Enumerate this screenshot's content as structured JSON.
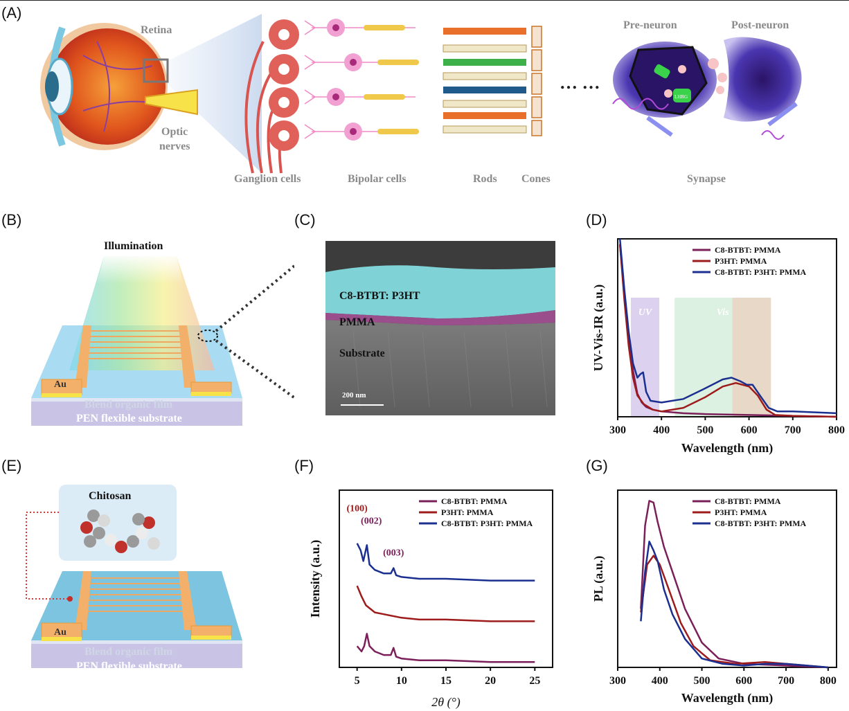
{
  "panels": [
    "(A)",
    "(B)",
    "(C)",
    "(D)",
    "(E)",
    "(F)",
    "(G)"
  ],
  "panel_a": {
    "retina": "Retina",
    "optic_line1": "Optic",
    "optic_line2": "nerves",
    "ganglion": "Ganglion cells",
    "bipolar": "Bipolar cells",
    "rods": "Rods",
    "cones": "Cones",
    "ellipsis": "… …",
    "pre_neuron": "Pre-neuron",
    "post_neuron": "Post-neuron",
    "synapse": "Synapse",
    "vesicle_text": "LHRG"
  },
  "panel_b": {
    "illumination": "Illumination",
    "electrode": "Au",
    "film": "Blend organic film",
    "substrate": "PEN flexible substrate"
  },
  "panel_c": {
    "layer_blend": "C8-BTBT: P3HT",
    "layer_pmma": "PMMA",
    "layer_substrate": "Substrate",
    "scalebar": "200 nm"
  },
  "panel_e": {
    "molecule": "Chitosan",
    "electrode": "Au",
    "film": "Blend organic film",
    "substrate": "PEN flexible substrate"
  },
  "colors": {
    "s1": "#7a1f5a",
    "s2": "#9e1b1b",
    "s3": "#1a2f8f",
    "gold": "#f2b06a",
    "film_blue": "#9fd4ef",
    "synapse_purple": "#5b3bb5"
  },
  "chart_data": [
    {
      "id": "D",
      "type": "line",
      "xlabel": "Wavelength (nm)",
      "ylabel": "UV-Vis-IR (a.u.)",
      "xlim": [
        300,
        800
      ],
      "ylim": [
        0,
        1
      ],
      "xticks": [
        300,
        400,
        500,
        600,
        700,
        800
      ],
      "regions": [
        {
          "label": "UV",
          "x0": 330,
          "x1": 395
        },
        {
          "label": "Vis",
          "x0": 430,
          "x1": 650
        }
      ],
      "series": [
        {
          "name": "C8-BTBT: PMMA",
          "x": [
            305,
            315,
            325,
            335,
            345,
            355,
            365,
            380,
            400,
            450,
            500,
            600,
            700,
            800
          ],
          "y": [
            0.97,
            0.7,
            0.45,
            0.26,
            0.13,
            0.08,
            0.055,
            0.04,
            0.03,
            0.02,
            0.015,
            0.01,
            0.005,
            0.0
          ]
        },
        {
          "name": "P3HT: PMMA",
          "x": [
            305,
            315,
            325,
            335,
            345,
            360,
            380,
            400,
            450,
            500,
            540,
            570,
            600,
            620,
            640,
            660,
            700,
            800
          ],
          "y": [
            0.97,
            0.66,
            0.4,
            0.22,
            0.12,
            0.07,
            0.04,
            0.03,
            0.05,
            0.11,
            0.17,
            0.19,
            0.17,
            0.12,
            0.04,
            0.01,
            0.005,
            0.0
          ]
        },
        {
          "name": "C8-BTBT: P3HT: PMMA",
          "x": [
            305,
            315,
            325,
            335,
            345,
            352,
            358,
            365,
            375,
            400,
            450,
            500,
            540,
            560,
            580,
            595,
            608,
            625,
            645,
            665,
            700,
            800
          ],
          "y": [
            1.0,
            0.72,
            0.48,
            0.3,
            0.22,
            0.24,
            0.25,
            0.14,
            0.09,
            0.08,
            0.1,
            0.16,
            0.21,
            0.22,
            0.2,
            0.18,
            0.18,
            0.12,
            0.05,
            0.03,
            0.03,
            0.02
          ]
        }
      ]
    },
    {
      "id": "F",
      "type": "line",
      "xlabel": "2θ (°)",
      "ylabel": "Intensity (a.u.)",
      "xlim": [
        3,
        27
      ],
      "ylim": [
        0,
        1
      ],
      "xticks": [
        5,
        10,
        15,
        20,
        25
      ],
      "peak_labels": [
        {
          "label": "(100)",
          "x": 5.0,
          "y": 0.88
        },
        {
          "label": "(002)",
          "x": 6.6,
          "y": 0.81
        },
        {
          "label": "(003)",
          "x": 9.1,
          "y": 0.63
        }
      ],
      "series": [
        {
          "name": "C8-BTBT: PMMA",
          "x": [
            5,
            5.5,
            5.8,
            6.1,
            6.4,
            7,
            8,
            8.8,
            9.1,
            9.4,
            10,
            12,
            15,
            20,
            25
          ],
          "y": [
            0.12,
            0.09,
            0.12,
            0.19,
            0.12,
            0.09,
            0.07,
            0.07,
            0.11,
            0.06,
            0.05,
            0.04,
            0.04,
            0.03,
            0.03
          ]
        },
        {
          "name": "P3HT: PMMA",
          "x": [
            5,
            5.5,
            6,
            7,
            8,
            10,
            12,
            15,
            20,
            25
          ],
          "y": [
            0.46,
            0.4,
            0.35,
            0.31,
            0.3,
            0.28,
            0.27,
            0.27,
            0.26,
            0.26
          ]
        },
        {
          "name": "C8-BTBT: P3HT: PMMA",
          "x": [
            5,
            5.4,
            5.7,
            6.1,
            6.4,
            7,
            8,
            8.8,
            9.1,
            9.4,
            10,
            12,
            15,
            20,
            25
          ],
          "y": [
            0.7,
            0.66,
            0.6,
            0.69,
            0.58,
            0.55,
            0.53,
            0.53,
            0.56,
            0.52,
            0.51,
            0.5,
            0.5,
            0.49,
            0.49
          ]
        }
      ]
    },
    {
      "id": "G",
      "type": "line",
      "xlabel": "Wavelength (nm)",
      "ylabel": "PL (a.u.)",
      "xlim": [
        300,
        820
      ],
      "ylim": [
        0,
        1
      ],
      "xticks": [
        300,
        400,
        500,
        600,
        700,
        800
      ],
      "series": [
        {
          "name": "C8-BTBT: PMMA",
          "x": [
            355,
            365,
            375,
            385,
            395,
            410,
            430,
            460,
            500,
            540,
            600,
            700,
            800
          ],
          "y": [
            0.33,
            0.8,
            0.94,
            0.93,
            0.82,
            0.68,
            0.54,
            0.33,
            0.14,
            0.05,
            0.02,
            0.01,
            0.0
          ]
        },
        {
          "name": "P3HT: PMMA",
          "x": [
            355,
            370,
            385,
            400,
            420,
            450,
            480,
            520,
            580,
            650,
            700,
            800
          ],
          "y": [
            0.31,
            0.58,
            0.63,
            0.58,
            0.45,
            0.25,
            0.12,
            0.04,
            0.02,
            0.03,
            0.02,
            0.0
          ]
        },
        {
          "name": "C8-BTBT: P3HT: PMMA",
          "x": [
            355,
            365,
            375,
            385,
            395,
            410,
            430,
            460,
            500,
            550,
            600,
            650,
            700,
            800
          ],
          "y": [
            0.26,
            0.54,
            0.71,
            0.66,
            0.6,
            0.44,
            0.3,
            0.16,
            0.05,
            0.02,
            0.01,
            0.02,
            0.02,
            0.0
          ]
        }
      ]
    }
  ]
}
